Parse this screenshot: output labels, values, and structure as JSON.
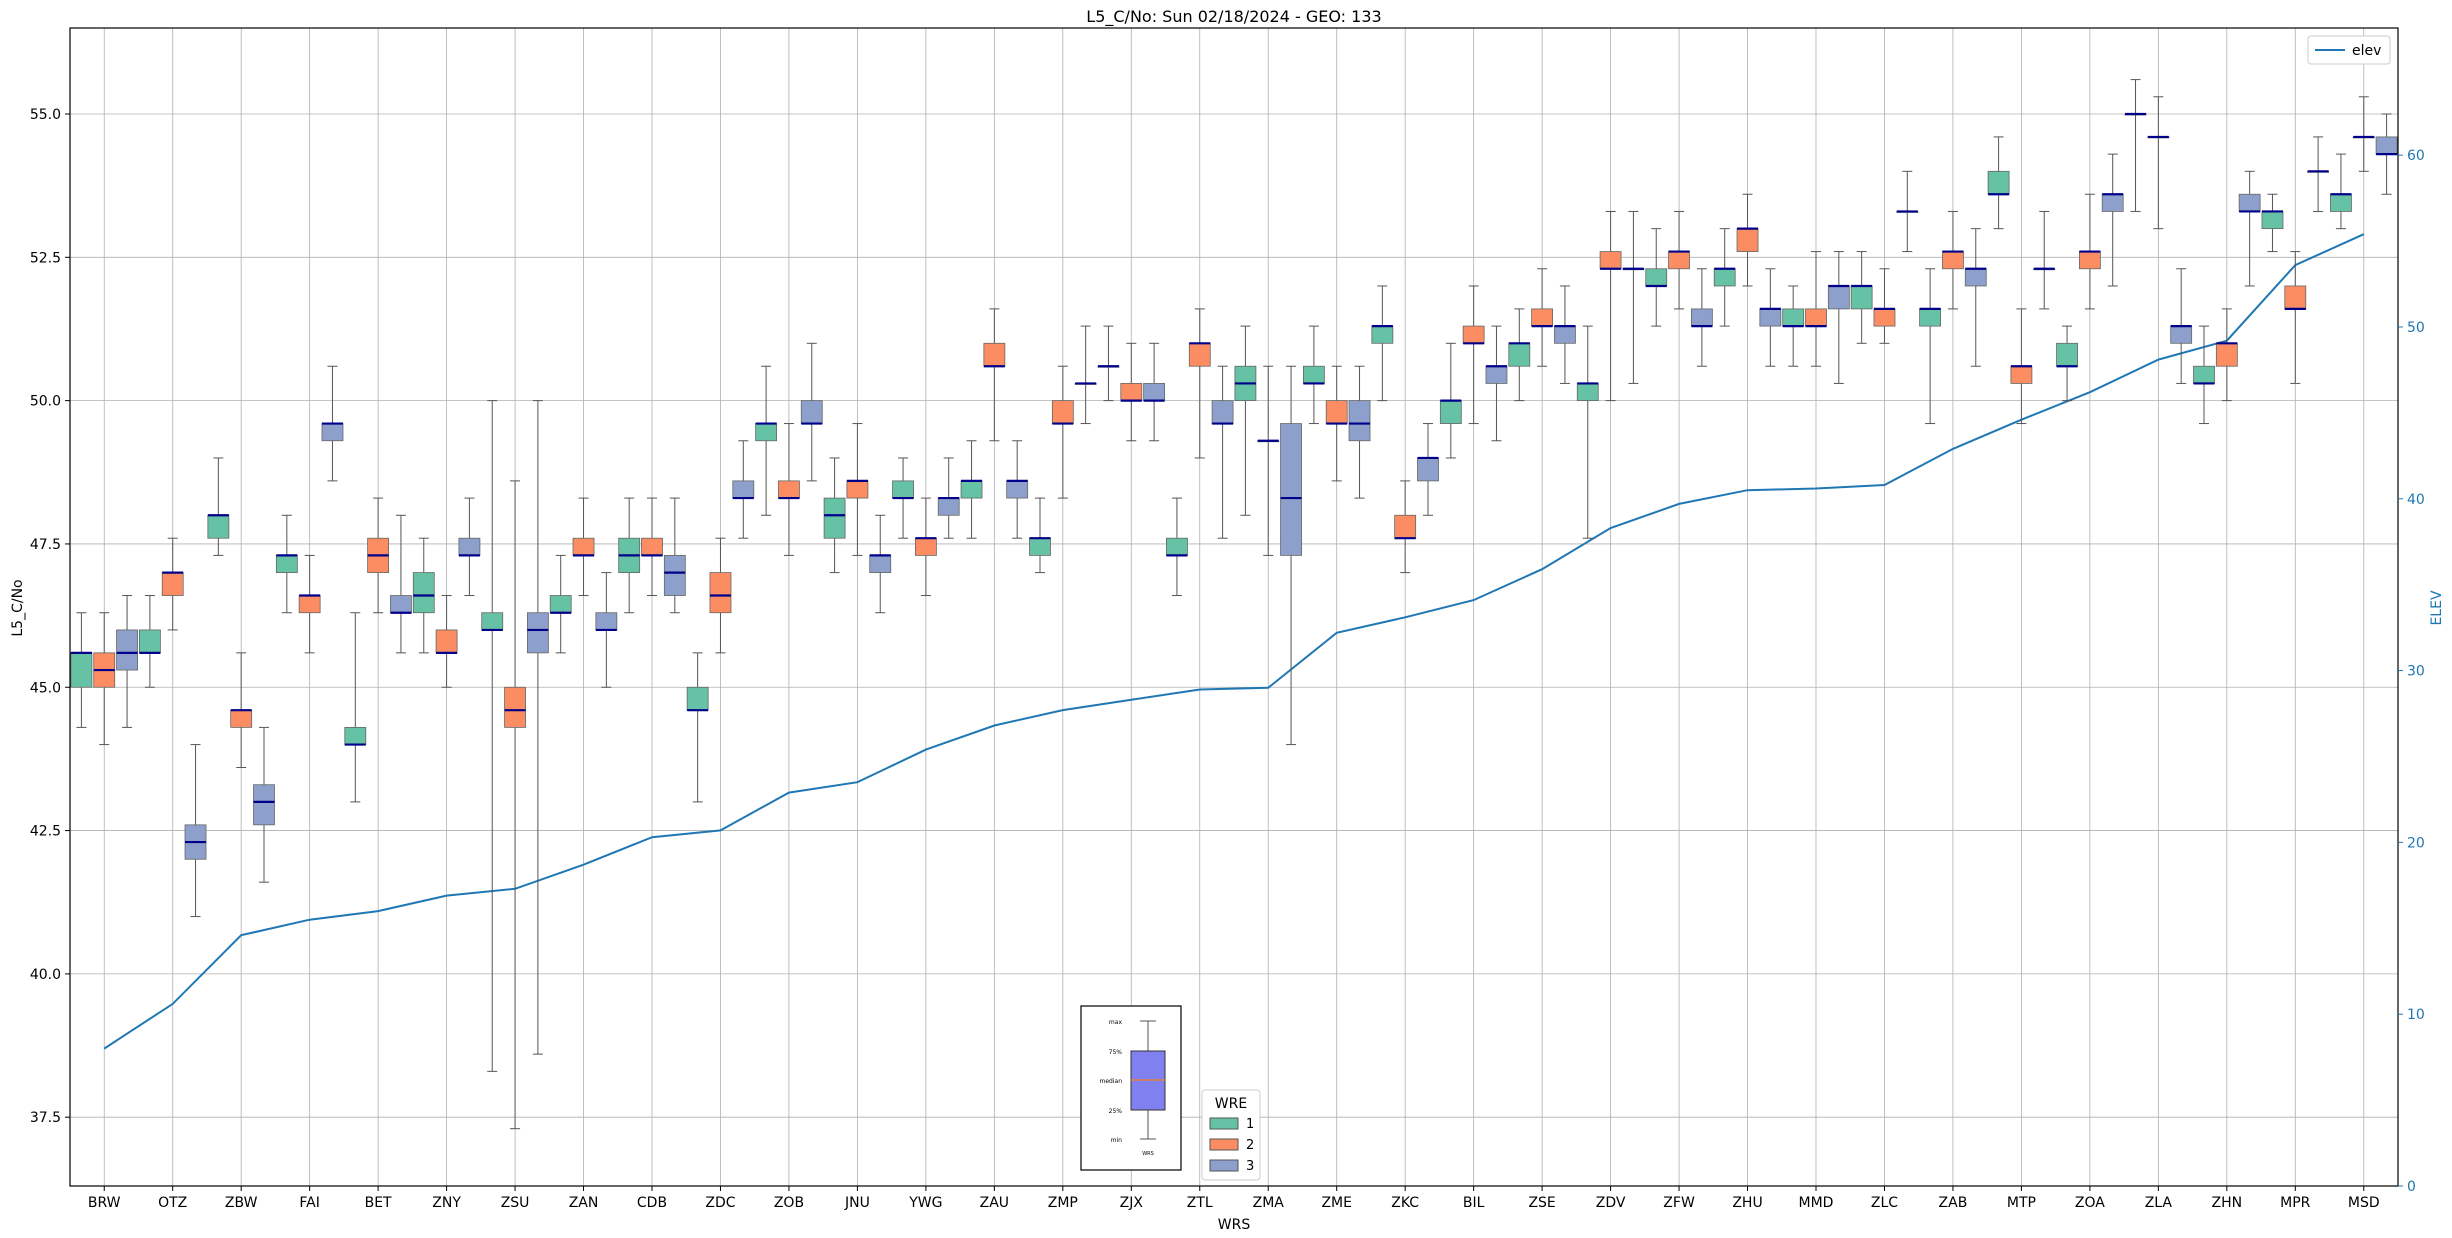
{
  "chart_data": {
    "type": "box",
    "title": "L5_C/No: Sun 02/18/2024 - GEO: 133",
    "xlabel": "WRS",
    "ylabel": "L5_C/No",
    "ylabel_right": "ELEV",
    "ylim": [
      36.3,
      56.5
    ],
    "ylim_right": [
      0,
      67.4
    ],
    "yticks": [
      "37.5",
      "40.0",
      "42.5",
      "45.0",
      "47.5",
      "50.0",
      "52.5",
      "55.0"
    ],
    "yticks_right": [
      "0",
      "10",
      "20",
      "30",
      "40",
      "50",
      "60"
    ],
    "grid": true,
    "categories": [
      "BRW",
      "OTZ",
      "ZBW",
      "FAI",
      "BET",
      "ZNY",
      "ZSU",
      "ZAN",
      "CDB",
      "ZDC",
      "ZOB",
      "JNU",
      "YWG",
      "ZAU",
      "ZMP",
      "ZJX",
      "ZTL",
      "ZMA",
      "ZME",
      "ZKC",
      "BIL",
      "ZSE",
      "ZDV",
      "ZFW",
      "ZHU",
      "MMD",
      "ZLC",
      "ZAB",
      "MTP",
      "ZOA",
      "ZLA",
      "ZHN",
      "MPR",
      "MSD"
    ],
    "colors": {
      "1": "#66c2a5",
      "2": "#fc8d62",
      "3": "#8da0cb",
      "median": "#00008b",
      "elev": "#1f77b4",
      "whisker": "#555555"
    },
    "boxes": [
      {
        "cat": "BRW",
        "wre": 1,
        "min": 44.3,
        "q1": 45.0,
        "median": 45.6,
        "q3": 45.6,
        "max": 46.3
      },
      {
        "cat": "BRW",
        "wre": 2,
        "min": 44.0,
        "q1": 45.0,
        "median": 45.3,
        "q3": 45.6,
        "max": 46.3
      },
      {
        "cat": "BRW",
        "wre": 3,
        "min": 44.3,
        "q1": 45.3,
        "median": 45.6,
        "q3": 46.0,
        "max": 46.6
      },
      {
        "cat": "OTZ",
        "wre": 1,
        "min": 45.0,
        "q1": 45.6,
        "median": 45.6,
        "q3": 46.0,
        "max": 46.6
      },
      {
        "cat": "OTZ",
        "wre": 2,
        "min": 46.0,
        "q1": 46.6,
        "median": 47.0,
        "q3": 47.0,
        "max": 47.6
      },
      {
        "cat": "OTZ",
        "wre": 3,
        "min": 41.0,
        "q1": 42.0,
        "median": 42.3,
        "q3": 42.6,
        "max": 44.0
      },
      {
        "cat": "ZBW",
        "wre": 1,
        "min": 47.3,
        "q1": 47.6,
        "median": 48.0,
        "q3": 48.0,
        "max": 49.0
      },
      {
        "cat": "ZBW",
        "wre": 2,
        "min": 43.6,
        "q1": 44.3,
        "median": 44.6,
        "q3": 44.6,
        "max": 45.6
      },
      {
        "cat": "ZBW",
        "wre": 3,
        "min": 41.6,
        "q1": 42.6,
        "median": 43.0,
        "q3": 43.3,
        "max": 44.3
      },
      {
        "cat": "FAI",
        "wre": 1,
        "min": 46.3,
        "q1": 47.0,
        "median": 47.3,
        "q3": 47.3,
        "max": 48.0
      },
      {
        "cat": "FAI",
        "wre": 2,
        "min": 45.6,
        "q1": 46.3,
        "median": 46.6,
        "q3": 46.6,
        "max": 47.3
      },
      {
        "cat": "FAI",
        "wre": 3,
        "min": 48.6,
        "q1": 49.3,
        "median": 49.6,
        "q3": 49.6,
        "max": 50.6
      },
      {
        "cat": "BET",
        "wre": 1,
        "min": 43.0,
        "q1": 44.0,
        "median": 44.0,
        "q3": 44.3,
        "max": 46.3
      },
      {
        "cat": "BET",
        "wre": 2,
        "min": 46.3,
        "q1": 47.0,
        "median": 47.3,
        "q3": 47.6,
        "max": 48.3
      },
      {
        "cat": "BET",
        "wre": 3,
        "min": 45.6,
        "q1": 46.3,
        "median": 46.3,
        "q3": 46.6,
        "max": 48.0
      },
      {
        "cat": "ZNY",
        "wre": 1,
        "min": 45.6,
        "q1": 46.3,
        "median": 46.6,
        "q3": 47.0,
        "max": 47.6
      },
      {
        "cat": "ZNY",
        "wre": 2,
        "min": 45.0,
        "q1": 45.6,
        "median": 45.6,
        "q3": 46.0,
        "max": 46.6
      },
      {
        "cat": "ZNY",
        "wre": 3,
        "min": 46.6,
        "q1": 47.3,
        "median": 47.3,
        "q3": 47.6,
        "max": 48.3
      },
      {
        "cat": "ZSU",
        "wre": 1,
        "min": 38.3,
        "q1": 46.0,
        "median": 46.0,
        "q3": 46.3,
        "max": 50.0
      },
      {
        "cat": "ZSU",
        "wre": 2,
        "min": 37.3,
        "q1": 44.3,
        "median": 44.6,
        "q3": 45.0,
        "max": 48.6
      },
      {
        "cat": "ZSU",
        "wre": 3,
        "min": 38.6,
        "q1": 45.6,
        "median": 46.0,
        "q3": 46.3,
        "max": 50.0
      },
      {
        "cat": "ZAN",
        "wre": 1,
        "min": 45.6,
        "q1": 46.3,
        "median": 46.3,
        "q3": 46.6,
        "max": 47.3
      },
      {
        "cat": "ZAN",
        "wre": 2,
        "min": 46.6,
        "q1": 47.3,
        "median": 47.3,
        "q3": 47.6,
        "max": 48.3
      },
      {
        "cat": "ZAN",
        "wre": 3,
        "min": 45.0,
        "q1": 46.0,
        "median": 46.0,
        "q3": 46.3,
        "max": 47.0
      },
      {
        "cat": "CDB",
        "wre": 1,
        "min": 46.3,
        "q1": 47.0,
        "median": 47.3,
        "q3": 47.6,
        "max": 48.3
      },
      {
        "cat": "CDB",
        "wre": 2,
        "min": 46.6,
        "q1": 47.3,
        "median": 47.3,
        "q3": 47.6,
        "max": 48.3
      },
      {
        "cat": "CDB",
        "wre": 3,
        "min": 46.3,
        "q1": 46.6,
        "median": 47.0,
        "q3": 47.3,
        "max": 48.3
      },
      {
        "cat": "ZDC",
        "wre": 1,
        "min": 43.0,
        "q1": 44.6,
        "median": 44.6,
        "q3": 45.0,
        "max": 45.6
      },
      {
        "cat": "ZDC",
        "wre": 2,
        "min": 45.6,
        "q1": 46.3,
        "median": 46.6,
        "q3": 47.0,
        "max": 47.6
      },
      {
        "cat": "ZDC",
        "wre": 3,
        "min": 47.6,
        "q1": 48.3,
        "median": 48.3,
        "q3": 48.6,
        "max": 49.3
      },
      {
        "cat": "ZOB",
        "wre": 1,
        "min": 48.0,
        "q1": 49.3,
        "median": 49.6,
        "q3": 49.6,
        "max": 50.6
      },
      {
        "cat": "ZOB",
        "wre": 2,
        "min": 47.3,
        "q1": 48.3,
        "median": 48.3,
        "q3": 48.6,
        "max": 49.6
      },
      {
        "cat": "ZOB",
        "wre": 3,
        "min": 48.6,
        "q1": 49.6,
        "median": 49.6,
        "q3": 50.0,
        "max": 51.0
      },
      {
        "cat": "JNU",
        "wre": 1,
        "min": 47.0,
        "q1": 47.6,
        "median": 48.0,
        "q3": 48.3,
        "max": 49.0
      },
      {
        "cat": "JNU",
        "wre": 2,
        "min": 47.3,
        "q1": 48.3,
        "median": 48.6,
        "q3": 48.6,
        "max": 49.6
      },
      {
        "cat": "JNU",
        "wre": 3,
        "min": 46.3,
        "q1": 47.0,
        "median": 47.3,
        "q3": 47.3,
        "max": 48.0
      },
      {
        "cat": "YWG",
        "wre": 1,
        "min": 47.6,
        "q1": 48.3,
        "median": 48.3,
        "q3": 48.6,
        "max": 49.0
      },
      {
        "cat": "YWG",
        "wre": 2,
        "min": 46.6,
        "q1": 47.3,
        "median": 47.6,
        "q3": 47.6,
        "max": 48.3
      },
      {
        "cat": "YWG",
        "wre": 3,
        "min": 47.6,
        "q1": 48.0,
        "median": 48.3,
        "q3": 48.3,
        "max": 49.0
      },
      {
        "cat": "ZAU",
        "wre": 1,
        "min": 47.6,
        "q1": 48.3,
        "median": 48.6,
        "q3": 48.6,
        "max": 49.3
      },
      {
        "cat": "ZAU",
        "wre": 2,
        "min": 49.3,
        "q1": 50.6,
        "median": 50.6,
        "q3": 51.0,
        "max": 51.6
      },
      {
        "cat": "ZAU",
        "wre": 3,
        "min": 47.6,
        "q1": 48.3,
        "median": 48.6,
        "q3": 48.6,
        "max": 49.3
      },
      {
        "cat": "ZMP",
        "wre": 1,
        "min": 47.0,
        "q1": 47.3,
        "median": 47.6,
        "q3": 47.6,
        "max": 48.3
      },
      {
        "cat": "ZMP",
        "wre": 2,
        "min": 48.3,
        "q1": 49.6,
        "median": 49.6,
        "q3": 50.0,
        "max": 50.6
      },
      {
        "cat": "ZMP",
        "wre": 3,
        "min": 49.6,
        "q1": 50.3,
        "median": 50.3,
        "q3": 50.3,
        "max": 51.3
      },
      {
        "cat": "ZJX",
        "wre": 1,
        "min": 50.0,
        "q1": 50.6,
        "median": 50.6,
        "q3": 50.6,
        "max": 51.3
      },
      {
        "cat": "ZJX",
        "wre": 2,
        "min": 49.3,
        "q1": 50.0,
        "median": 50.0,
        "q3": 50.3,
        "max": 51.0
      },
      {
        "cat": "ZJX",
        "wre": 3,
        "min": 49.3,
        "q1": 50.0,
        "median": 50.0,
        "q3": 50.3,
        "max": 51.0
      },
      {
        "cat": "ZTL",
        "wre": 1,
        "min": 46.6,
        "q1": 47.3,
        "median": 47.3,
        "q3": 47.6,
        "max": 48.3
      },
      {
        "cat": "ZTL",
        "wre": 2,
        "min": 49.0,
        "q1": 50.6,
        "median": 51.0,
        "q3": 51.0,
        "max": 51.6
      },
      {
        "cat": "ZTL",
        "wre": 3,
        "min": 47.6,
        "q1": 49.6,
        "median": 49.6,
        "q3": 50.0,
        "max": 50.6
      },
      {
        "cat": "ZMA",
        "wre": 1,
        "min": 48.0,
        "q1": 50.0,
        "median": 50.3,
        "q3": 50.6,
        "max": 51.3
      },
      {
        "cat": "ZMA",
        "wre": 2,
        "min": 47.3,
        "q1": 49.3,
        "median": 49.3,
        "q3": 49.3,
        "max": 50.6
      },
      {
        "cat": "ZMA",
        "wre": 3,
        "min": 44.0,
        "q1": 47.3,
        "median": 48.3,
        "q3": 49.6,
        "max": 50.6
      },
      {
        "cat": "ZME",
        "wre": 1,
        "min": 49.6,
        "q1": 50.3,
        "median": 50.3,
        "q3": 50.6,
        "max": 51.3
      },
      {
        "cat": "ZME",
        "wre": 2,
        "min": 48.6,
        "q1": 49.6,
        "median": 49.6,
        "q3": 50.0,
        "max": 50.6
      },
      {
        "cat": "ZME",
        "wre": 3,
        "min": 48.3,
        "q1": 49.3,
        "median": 49.6,
        "q3": 50.0,
        "max": 50.6
      },
      {
        "cat": "ZKC",
        "wre": 1,
        "min": 50.0,
        "q1": 51.0,
        "median": 51.3,
        "q3": 51.3,
        "max": 52.0
      },
      {
        "cat": "ZKC",
        "wre": 2,
        "min": 47.0,
        "q1": 47.6,
        "median": 47.6,
        "q3": 48.0,
        "max": 48.6
      },
      {
        "cat": "ZKC",
        "wre": 3,
        "min": 48.0,
        "q1": 48.6,
        "median": 49.0,
        "q3": 49.0,
        "max": 49.6
      },
      {
        "cat": "BIL",
        "wre": 1,
        "min": 49.0,
        "q1": 49.6,
        "median": 50.0,
        "q3": 50.0,
        "max": 51.0
      },
      {
        "cat": "BIL",
        "wre": 2,
        "min": 49.6,
        "q1": 51.0,
        "median": 51.0,
        "q3": 51.3,
        "max": 52.0
      },
      {
        "cat": "BIL",
        "wre": 3,
        "min": 49.3,
        "q1": 50.3,
        "median": 50.6,
        "q3": 50.6,
        "max": 51.3
      },
      {
        "cat": "ZSE",
        "wre": 1,
        "min": 50.0,
        "q1": 50.6,
        "median": 51.0,
        "q3": 51.0,
        "max": 51.6
      },
      {
        "cat": "ZSE",
        "wre": 2,
        "min": 50.6,
        "q1": 51.3,
        "median": 51.3,
        "q3": 51.6,
        "max": 52.3
      },
      {
        "cat": "ZSE",
        "wre": 3,
        "min": 50.3,
        "q1": 51.0,
        "median": 51.3,
        "q3": 51.3,
        "max": 52.0
      },
      {
        "cat": "ZDV",
        "wre": 1,
        "min": 47.6,
        "q1": 50.0,
        "median": 50.3,
        "q3": 50.3,
        "max": 51.3
      },
      {
        "cat": "ZDV",
        "wre": 2,
        "min": 50.0,
        "q1": 52.3,
        "median": 52.3,
        "q3": 52.6,
        "max": 53.3
      },
      {
        "cat": "ZDV",
        "wre": 3,
        "min": 50.3,
        "q1": 52.3,
        "median": 52.3,
        "q3": 52.3,
        "max": 53.3
      },
      {
        "cat": "ZFW",
        "wre": 1,
        "min": 51.3,
        "q1": 52.0,
        "median": 52.0,
        "q3": 52.3,
        "max": 53.0
      },
      {
        "cat": "ZFW",
        "wre": 2,
        "min": 51.6,
        "q1": 52.3,
        "median": 52.6,
        "q3": 52.6,
        "max": 53.3
      },
      {
        "cat": "ZFW",
        "wre": 3,
        "min": 50.6,
        "q1": 51.3,
        "median": 51.3,
        "q3": 51.6,
        "max": 52.3
      },
      {
        "cat": "ZHU",
        "wre": 1,
        "min": 51.3,
        "q1": 52.0,
        "median": 52.3,
        "q3": 52.3,
        "max": 53.0
      },
      {
        "cat": "ZHU",
        "wre": 2,
        "min": 52.0,
        "q1": 52.6,
        "median": 53.0,
        "q3": 53.0,
        "max": 53.6
      },
      {
        "cat": "ZHU",
        "wre": 3,
        "min": 50.6,
        "q1": 51.3,
        "median": 51.6,
        "q3": 51.6,
        "max": 52.3
      },
      {
        "cat": "MMD",
        "wre": 1,
        "min": 50.6,
        "q1": 51.3,
        "median": 51.3,
        "q3": 51.6,
        "max": 52.0
      },
      {
        "cat": "MMD",
        "wre": 2,
        "min": 50.6,
        "q1": 51.3,
        "median": 51.3,
        "q3": 51.6,
        "max": 52.6
      },
      {
        "cat": "MMD",
        "wre": 3,
        "min": 50.3,
        "q1": 51.6,
        "median": 52.0,
        "q3": 52.0,
        "max": 52.6
      },
      {
        "cat": "ZLC",
        "wre": 1,
        "min": 51.0,
        "q1": 51.6,
        "median": 52.0,
        "q3": 52.0,
        "max": 52.6
      },
      {
        "cat": "ZLC",
        "wre": 2,
        "min": 51.0,
        "q1": 51.3,
        "median": 51.6,
        "q3": 51.6,
        "max": 52.3
      },
      {
        "cat": "ZLC",
        "wre": 3,
        "min": 52.6,
        "q1": 53.3,
        "median": 53.3,
        "q3": 53.3,
        "max": 54.0
      },
      {
        "cat": "ZAB",
        "wre": 1,
        "min": 49.6,
        "q1": 51.3,
        "median": 51.6,
        "q3": 51.6,
        "max": 52.3
      },
      {
        "cat": "ZAB",
        "wre": 2,
        "min": 51.6,
        "q1": 52.3,
        "median": 52.6,
        "q3": 52.6,
        "max": 53.3
      },
      {
        "cat": "ZAB",
        "wre": 3,
        "min": 50.6,
        "q1": 52.0,
        "median": 52.3,
        "q3": 52.3,
        "max": 53.0
      },
      {
        "cat": "MTP",
        "wre": 1,
        "min": 53.0,
        "q1": 53.6,
        "median": 53.6,
        "q3": 54.0,
        "max": 54.6
      },
      {
        "cat": "MTP",
        "wre": 2,
        "min": 49.6,
        "q1": 50.3,
        "median": 50.6,
        "q3": 50.6,
        "max": 51.6
      },
      {
        "cat": "MTP",
        "wre": 3,
        "min": 51.6,
        "q1": 52.3,
        "median": 52.3,
        "q3": 52.3,
        "max": 53.3
      },
      {
        "cat": "ZOA",
        "wre": 1,
        "min": 50.0,
        "q1": 50.6,
        "median": 50.6,
        "q3": 51.0,
        "max": 51.3
      },
      {
        "cat": "ZOA",
        "wre": 2,
        "min": 51.6,
        "q1": 52.3,
        "median": 52.6,
        "q3": 52.6,
        "max": 53.6
      },
      {
        "cat": "ZOA",
        "wre": 3,
        "min": 52.0,
        "q1": 53.3,
        "median": 53.6,
        "q3": 53.6,
        "max": 54.3
      },
      {
        "cat": "ZLA",
        "wre": 1,
        "min": 53.3,
        "q1": 55.0,
        "median": 55.0,
        "q3": 55.0,
        "max": 55.6
      },
      {
        "cat": "ZLA",
        "wre": 2,
        "min": 53.0,
        "q1": 54.6,
        "median": 54.6,
        "q3": 54.6,
        "max": 55.3
      },
      {
        "cat": "ZLA",
        "wre": 3,
        "min": 50.3,
        "q1": 51.0,
        "median": 51.3,
        "q3": 51.3,
        "max": 52.3
      },
      {
        "cat": "ZHN",
        "wre": 1,
        "min": 49.6,
        "q1": 50.3,
        "median": 50.3,
        "q3": 50.6,
        "max": 51.3
      },
      {
        "cat": "ZHN",
        "wre": 2,
        "min": 50.0,
        "q1": 50.6,
        "median": 51.0,
        "q3": 51.0,
        "max": 51.6
      },
      {
        "cat": "ZHN",
        "wre": 3,
        "min": 52.0,
        "q1": 53.3,
        "median": 53.3,
        "q3": 53.6,
        "max": 54.0
      },
      {
        "cat": "MPR",
        "wre": 1,
        "min": 52.6,
        "q1": 53.0,
        "median": 53.3,
        "q3": 53.3,
        "max": 53.6
      },
      {
        "cat": "MPR",
        "wre": 2,
        "min": 50.3,
        "q1": 51.6,
        "median": 51.6,
        "q3": 52.0,
        "max": 52.6
      },
      {
        "cat": "MPR",
        "wre": 3,
        "min": 53.3,
        "q1": 54.0,
        "median": 54.0,
        "q3": 54.0,
        "max": 54.6
      },
      {
        "cat": "MSD",
        "wre": 1,
        "min": 53.0,
        "q1": 53.3,
        "median": 53.6,
        "q3": 53.6,
        "max": 54.3
      },
      {
        "cat": "MSD",
        "wre": 2,
        "min": 54.0,
        "q1": 54.6,
        "median": 54.6,
        "q3": 54.6,
        "max": 55.3
      },
      {
        "cat": "MSD",
        "wre": 3,
        "min": 53.6,
        "q1": 54.3,
        "median": 54.3,
        "q3": 54.6,
        "max": 55.0
      }
    ],
    "series": [
      {
        "name": "elev",
        "axis": "right",
        "type": "line",
        "values": [
          8,
          10.6,
          14.6,
          15.5,
          16,
          16.9,
          17.3,
          18.7,
          20.3,
          20.7,
          22.9,
          23.5,
          25.4,
          26.8,
          27.7,
          28.3,
          28.9,
          29,
          32.2,
          33.1,
          34.1,
          35.9,
          38.3,
          39.7,
          40.5,
          40.6,
          40.8,
          42.9,
          44.6,
          46.2,
          48.1,
          49.2,
          53.6,
          55.4
        ]
      }
    ],
    "legend_line": {
      "label": "elev",
      "placement": "top-right"
    },
    "legend_wre": {
      "title": "WRE",
      "labels": [
        "1",
        "2",
        "3"
      ],
      "placement": "bottom-center"
    },
    "inset_key": {
      "labels": [
        "max",
        "75%",
        "median",
        "25%",
        "min"
      ],
      "xlabel": "WRS"
    }
  }
}
